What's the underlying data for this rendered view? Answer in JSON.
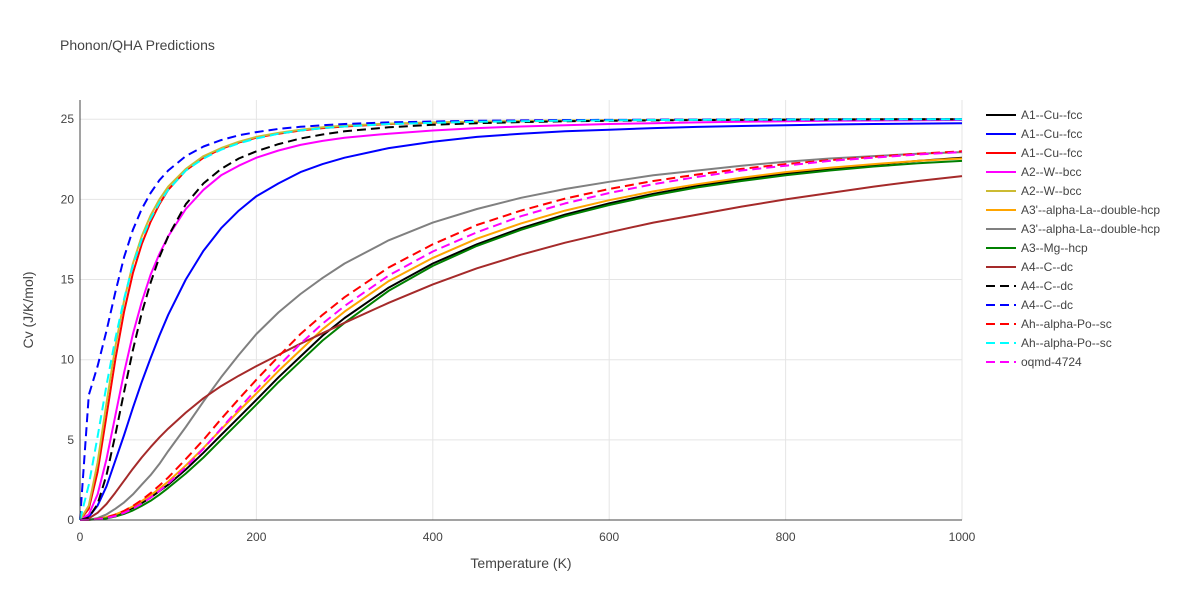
{
  "chart_data": {
    "type": "line",
    "title": "Phonon/QHA Predictions",
    "xlabel": "Temperature (K)",
    "ylabel": "Cv (J/K/mol)",
    "xlim": [
      0,
      1000
    ],
    "ylim": [
      0,
      26.2
    ],
    "x_ticks": [
      0,
      200,
      400,
      600,
      800,
      1000
    ],
    "y_ticks": [
      0,
      5,
      10,
      15,
      20,
      25
    ],
    "grid": true,
    "legend_position": "right",
    "x": [
      0,
      10,
      20,
      30,
      40,
      50,
      60,
      70,
      80,
      90,
      100,
      120,
      140,
      160,
      180,
      200,
      225,
      250,
      275,
      300,
      350,
      400,
      450,
      500,
      550,
      600,
      650,
      700,
      750,
      800,
      850,
      900,
      950,
      1000
    ],
    "series": [
      {
        "name": "A1--Cu--fcc",
        "color": "#000000",
        "dash": "solid",
        "values": [
          0,
          0.01,
          0.06,
          0.15,
          0.3,
          0.5,
          0.75,
          1.05,
          1.4,
          1.8,
          2.2,
          3.15,
          4.2,
          5.3,
          6.4,
          7.5,
          8.9,
          10.2,
          11.5,
          12.6,
          14.5,
          16.0,
          17.2,
          18.2,
          19.05,
          19.75,
          20.35,
          20.85,
          21.25,
          21.6,
          21.9,
          22.15,
          22.4,
          22.6
        ]
      },
      {
        "name": "A1--Cu--fcc",
        "color": "#0000ff",
        "dash": "solid",
        "values": [
          0,
          0.2,
          0.9,
          2.1,
          3.7,
          5.3,
          7.0,
          8.6,
          10.1,
          11.5,
          12.8,
          15.0,
          16.8,
          18.2,
          19.3,
          20.2,
          21.0,
          21.7,
          22.2,
          22.6,
          23.2,
          23.6,
          23.9,
          24.1,
          24.25,
          24.35,
          24.45,
          24.52,
          24.58,
          24.63,
          24.67,
          24.7,
          24.73,
          24.75
        ]
      },
      {
        "name": "A1--Cu--fcc",
        "color": "#ff0000",
        "dash": "solid",
        "values": [
          0,
          0.7,
          3.0,
          6.5,
          10.0,
          13.0,
          15.4,
          17.2,
          18.6,
          19.7,
          20.6,
          21.8,
          22.6,
          23.15,
          23.55,
          23.85,
          24.1,
          24.3,
          24.45,
          24.55,
          24.7,
          24.78,
          24.84,
          24.88,
          24.91,
          24.93,
          24.95,
          24.96,
          24.97,
          24.98,
          24.99,
          25.0,
          25.0,
          25.0
        ]
      },
      {
        "name": "A2--W--bcc",
        "color": "#ff00ff",
        "dash": "solid",
        "values": [
          0,
          0.35,
          1.6,
          3.8,
          6.5,
          9.2,
          11.6,
          13.6,
          15.3,
          16.6,
          17.7,
          19.4,
          20.6,
          21.5,
          22.1,
          22.6,
          23.05,
          23.4,
          23.65,
          23.85,
          24.1,
          24.3,
          24.45,
          24.55,
          24.63,
          24.7,
          24.75,
          24.8,
          24.84,
          24.87,
          24.9,
          24.92,
          24.94,
          24.95
        ]
      },
      {
        "name": "A2--W--bcc",
        "color": "#ccbb33",
        "dash": "solid",
        "values": [
          0,
          0.9,
          3.6,
          7.3,
          10.8,
          13.7,
          16.0,
          17.7,
          19.0,
          20.0,
          20.8,
          21.9,
          22.7,
          23.2,
          23.6,
          23.9,
          24.15,
          24.35,
          24.5,
          24.6,
          24.73,
          24.8,
          24.85,
          24.89,
          24.92,
          24.94,
          24.96,
          24.97,
          24.98,
          24.99,
          25.0,
          25.0,
          25.0,
          25.0
        ]
      },
      {
        "name": "A3'--alpha-La--double-hcp",
        "color": "#ffa500",
        "dash": "solid",
        "values": [
          0,
          0.01,
          0.07,
          0.18,
          0.35,
          0.57,
          0.85,
          1.18,
          1.55,
          1.95,
          2.4,
          3.4,
          4.5,
          5.65,
          6.8,
          7.9,
          9.3,
          10.6,
          11.9,
          13.0,
          14.9,
          16.35,
          17.55,
          18.5,
          19.3,
          19.95,
          20.5,
          20.95,
          21.35,
          21.7,
          21.97,
          22.2,
          22.4,
          22.55
        ]
      },
      {
        "name": "A3'--alpha-La--double-hcp",
        "color": "#808080",
        "dash": "solid",
        "values": [
          0,
          0.02,
          0.12,
          0.35,
          0.7,
          1.1,
          1.6,
          2.2,
          2.8,
          3.5,
          4.3,
          5.8,
          7.4,
          8.9,
          10.3,
          11.6,
          12.95,
          14.1,
          15.1,
          16.0,
          17.45,
          18.55,
          19.4,
          20.1,
          20.65,
          21.1,
          21.5,
          21.8,
          22.1,
          22.35,
          22.55,
          22.7,
          22.85,
          22.95
        ]
      },
      {
        "name": "A3--Mg--hcp",
        "color": "#008000",
        "dash": "solid",
        "values": [
          0,
          0.01,
          0.04,
          0.1,
          0.22,
          0.38,
          0.6,
          0.88,
          1.2,
          1.58,
          2.0,
          2.9,
          3.9,
          5.0,
          6.1,
          7.2,
          8.6,
          9.9,
          11.2,
          12.3,
          14.3,
          15.85,
          17.1,
          18.1,
          18.95,
          19.65,
          20.25,
          20.75,
          21.15,
          21.5,
          21.8,
          22.05,
          22.25,
          22.4
        ]
      },
      {
        "name": "A4--C--dc",
        "color": "#a52a2a",
        "dash": "solid",
        "values": [
          0,
          0.1,
          0.45,
          1.0,
          1.7,
          2.45,
          3.2,
          3.9,
          4.55,
          5.15,
          5.7,
          6.7,
          7.6,
          8.35,
          9.0,
          9.6,
          10.3,
          11.0,
          11.65,
          12.3,
          13.55,
          14.7,
          15.7,
          16.55,
          17.3,
          17.95,
          18.55,
          19.05,
          19.55,
          20.0,
          20.4,
          20.8,
          21.15,
          21.45
        ]
      },
      {
        "name": "A4--C--dc",
        "color": "#000000",
        "dash": "dash",
        "values": [
          0,
          0.15,
          1.0,
          2.8,
          5.3,
          8.0,
          10.6,
          12.9,
          14.8,
          16.4,
          17.7,
          19.7,
          21.0,
          21.9,
          22.55,
          23.0,
          23.45,
          23.8,
          24.05,
          24.25,
          24.5,
          24.65,
          24.75,
          24.82,
          24.87,
          24.9,
          24.93,
          24.95,
          24.96,
          24.97,
          24.98,
          24.99,
          25.0,
          25.0
        ]
      },
      {
        "name": "A4--C--dc",
        "color": "#0000ff",
        "dash": "dash",
        "values": [
          0,
          7.8,
          9.6,
          11.8,
          14.2,
          16.4,
          18.1,
          19.4,
          20.4,
          21.2,
          21.8,
          22.7,
          23.3,
          23.7,
          24.0,
          24.2,
          24.4,
          24.53,
          24.63,
          24.7,
          24.8,
          24.86,
          24.9,
          24.93,
          24.95,
          24.96,
          24.97,
          24.98,
          24.99,
          25.0,
          25.0,
          25.0,
          25.0,
          25.0
        ]
      },
      {
        "name": "Ah--alpha-Po--sc",
        "color": "#ff0000",
        "dash": "dash",
        "values": [
          0,
          0.01,
          0.06,
          0.16,
          0.33,
          0.57,
          0.88,
          1.25,
          1.68,
          2.15,
          2.65,
          3.8,
          5.0,
          6.3,
          7.55,
          8.75,
          10.2,
          11.6,
          12.8,
          13.9,
          15.75,
          17.2,
          18.4,
          19.3,
          20.05,
          20.65,
          21.15,
          21.55,
          21.9,
          22.2,
          22.45,
          22.65,
          22.85,
          23.0
        ]
      },
      {
        "name": "Ah--alpha-Po--sc",
        "color": "#00ffff",
        "dash": "dash",
        "values": [
          0,
          2.2,
          5.2,
          8.4,
          11.3,
          13.8,
          15.9,
          17.5,
          18.8,
          19.8,
          20.6,
          21.8,
          22.55,
          23.1,
          23.5,
          23.8,
          24.1,
          24.3,
          24.45,
          24.55,
          24.7,
          24.78,
          24.84,
          24.88,
          24.91,
          24.93,
          24.95,
          24.96,
          24.97,
          24.98,
          24.99,
          25.0,
          25.0,
          25.0
        ]
      },
      {
        "name": "oqmd-4724",
        "color": "#ff00ff",
        "dash": "dash",
        "values": [
          0,
          0.01,
          0.04,
          0.12,
          0.25,
          0.45,
          0.7,
          1.02,
          1.4,
          1.82,
          2.28,
          3.3,
          4.45,
          5.7,
          6.95,
          8.15,
          9.6,
          11.0,
          12.25,
          13.35,
          15.25,
          16.75,
          17.95,
          18.95,
          19.75,
          20.4,
          20.95,
          21.4,
          21.8,
          22.1,
          22.4,
          22.6,
          22.8,
          22.95
        ]
      }
    ]
  }
}
